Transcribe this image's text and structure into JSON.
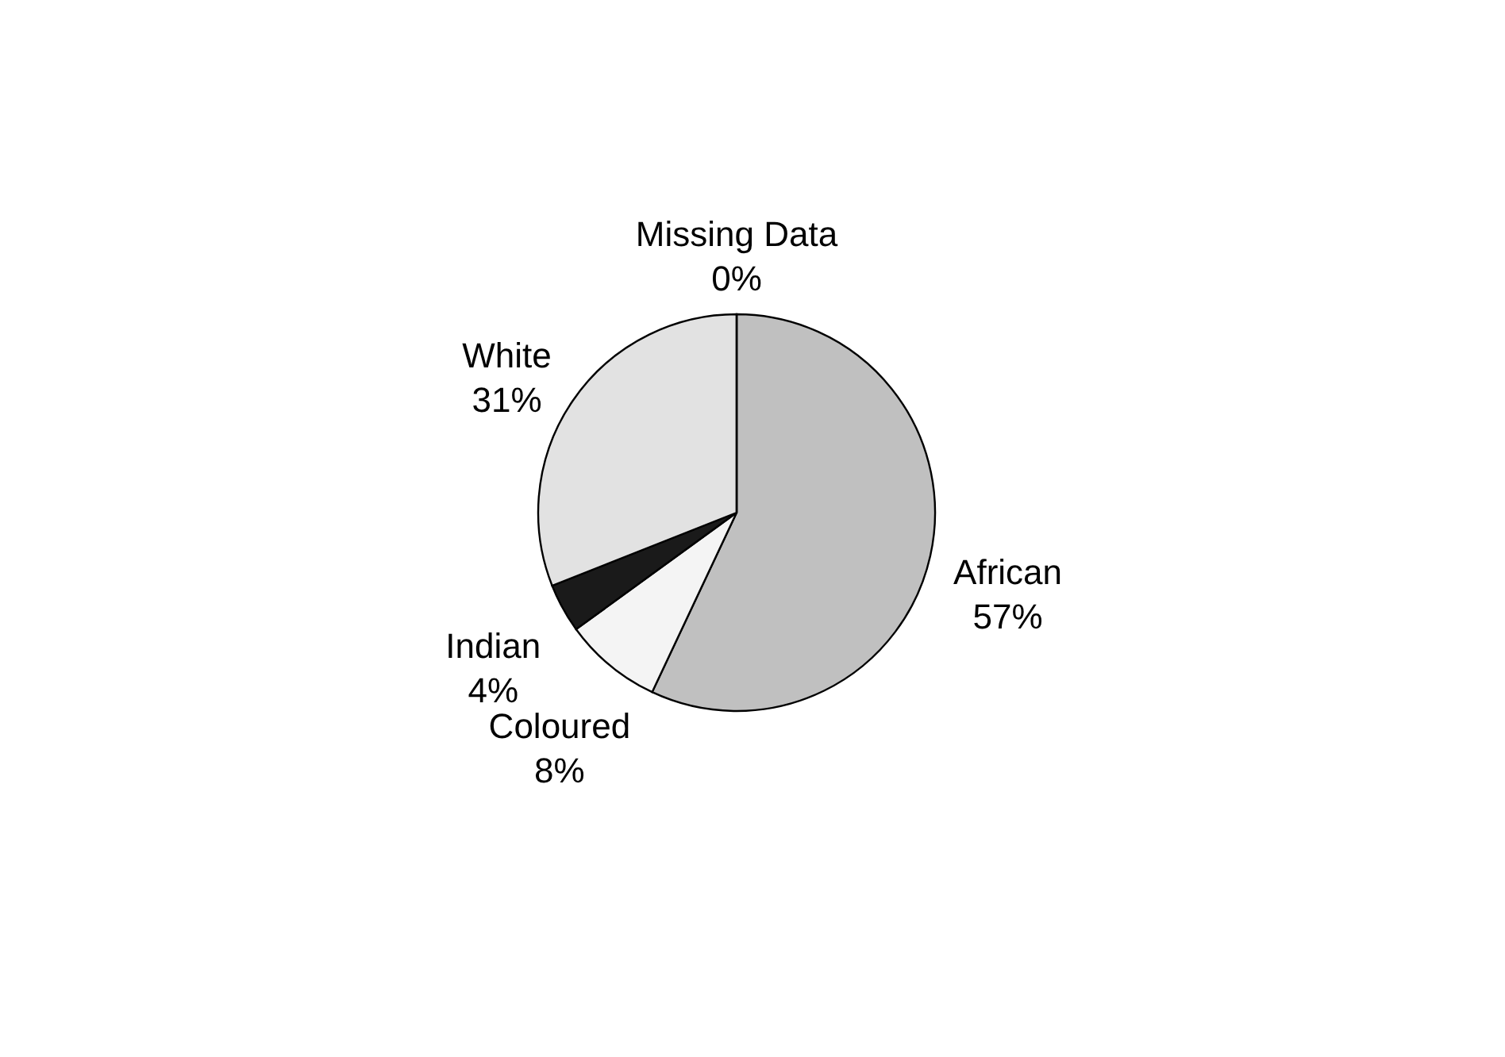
{
  "chart_data": {
    "type": "pie",
    "categories": [
      "African",
      "Coloured",
      "Indian",
      "White",
      "Missing Data"
    ],
    "values": [
      57,
      8,
      4,
      31,
      0
    ],
    "value_labels": [
      "57%",
      "8%",
      "4%",
      "31%",
      "0%"
    ],
    "colors": [
      "#c0c0c0",
      "#f4f4f4",
      "#1a1a1a",
      "#e2e2e2",
      "#ffffff"
    ],
    "legend": false
  }
}
